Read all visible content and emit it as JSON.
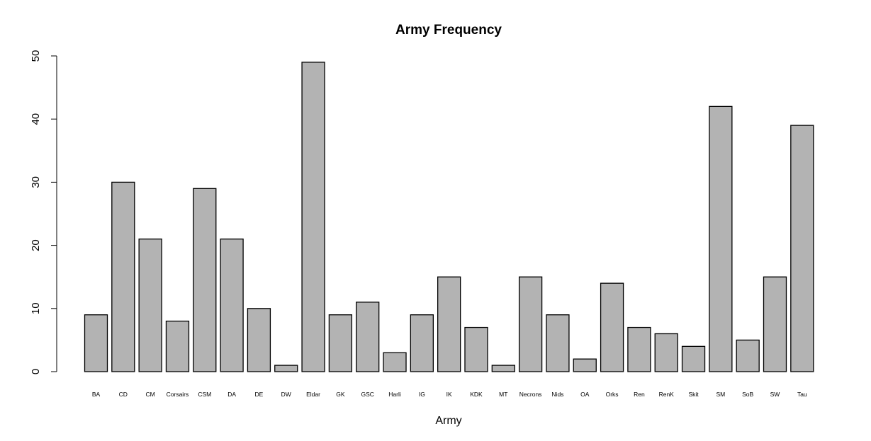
{
  "chart_data": {
    "type": "bar",
    "title": "Army Frequency",
    "xlabel": "Army",
    "ylabel": "",
    "ylim": [
      0,
      50
    ],
    "yticks": [
      0,
      10,
      20,
      30,
      40,
      50
    ],
    "grid": false,
    "legend": "none",
    "bar_color": "#b3b3b3",
    "bar_stroke": "#000000",
    "categories": [
      "BA",
      "CD",
      "CM",
      "Corsairs",
      "CSM",
      "DA",
      "DE",
      "DW",
      "Eldar",
      "GK",
      "GSC",
      "Harli",
      "IG",
      "IK",
      "KDK",
      "MT",
      "Necrons",
      "Nids",
      "OA",
      "Orks",
      "Ren",
      "RenK",
      "Skit",
      "SM",
      "SoB",
      "SW",
      "Tau"
    ],
    "values": [
      9,
      30,
      21,
      8,
      29,
      21,
      10,
      1,
      49,
      9,
      11,
      3,
      9,
      15,
      7,
      1,
      15,
      9,
      2,
      14,
      7,
      6,
      4,
      42,
      5,
      15,
      39
    ]
  }
}
